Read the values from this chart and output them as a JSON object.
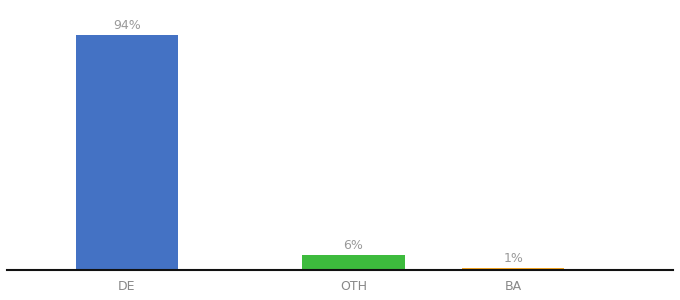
{
  "categories": [
    "DE",
    "OTH",
    "BA"
  ],
  "values": [
    94,
    6,
    1
  ],
  "bar_colors": [
    "#4472c4",
    "#3dbb3d",
    "#f5a623"
  ],
  "label_texts": [
    "94%",
    "6%",
    "1%"
  ],
  "ylim": [
    0,
    105
  ],
  "background_color": "#ffffff",
  "bar_width": 0.55,
  "label_fontsize": 9,
  "tick_fontsize": 9,
  "label_color": "#999999",
  "tick_color": "#888888",
  "axis_line_color": "#111111"
}
